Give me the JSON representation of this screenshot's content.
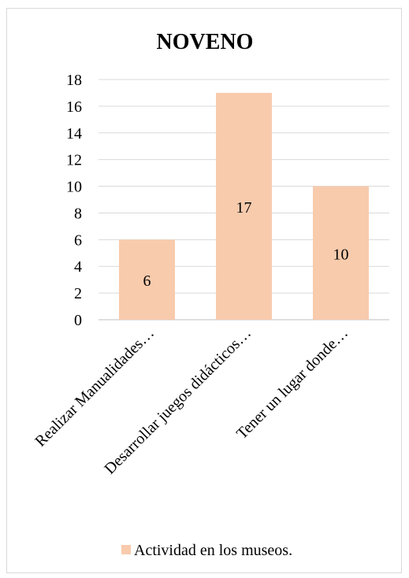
{
  "chart_data": {
    "type": "bar",
    "title": "NOVENO",
    "categories": [
      "Realizar Manualidades…",
      "Desarrollar juegos didácticos…",
      "Tener un lugar donde…"
    ],
    "series": [
      {
        "name": "Actividad en los museos.",
        "values": [
          6,
          17,
          10
        ]
      }
    ],
    "ylim": [
      0,
      18
    ],
    "yticks": [
      0,
      2,
      4,
      6,
      8,
      10,
      12,
      14,
      16,
      18
    ],
    "grid": true,
    "legend_position": "bottom",
    "colors": {
      "bar": "#f8cbad",
      "grid": "#d9d9d9",
      "axis": "#bfbfbf",
      "text": "#000000"
    }
  }
}
